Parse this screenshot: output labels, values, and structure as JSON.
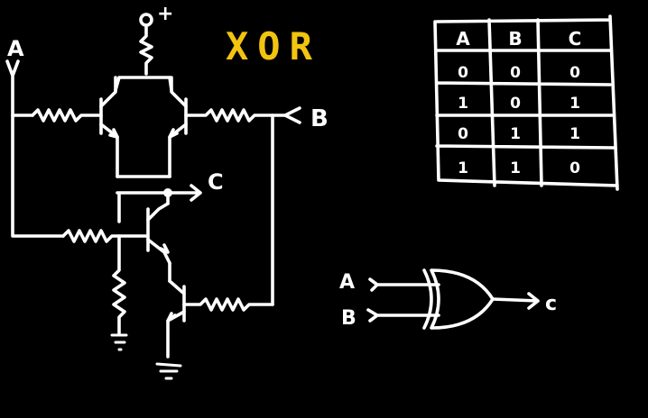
{
  "title": "XOR",
  "colors": {
    "background": "#000000",
    "ink": "#ffffff",
    "title": "#f2c40f"
  },
  "circuit": {
    "supply_label": "+",
    "input_a_label": "A",
    "input_b_label": "B",
    "output_label": "C"
  },
  "truth_table": {
    "headers": [
      "A",
      "B",
      "C"
    ],
    "rows": [
      [
        "0",
        "0",
        "0"
      ],
      [
        "1",
        "0",
        "1"
      ],
      [
        "0",
        "1",
        "1"
      ],
      [
        "1",
        "1",
        "0"
      ]
    ]
  },
  "gate": {
    "input_a_label": "A",
    "input_b_label": "B",
    "output_label": "c"
  }
}
